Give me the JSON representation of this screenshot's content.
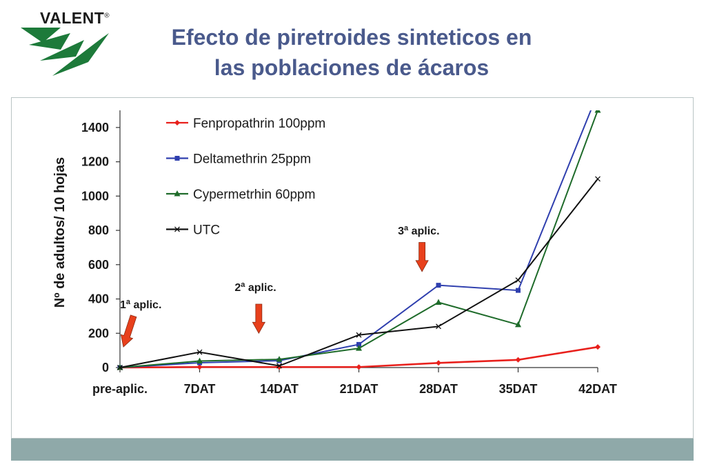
{
  "logo": {
    "text": "VALENT",
    "reg": "®"
  },
  "title": {
    "line1": "Efecto de piretroides sinteticos en",
    "line2": "las poblaciones de ácaros"
  },
  "colors": {
    "title": "#4a5a8c",
    "logo_green": "#1d7a3a",
    "frame_border": "#b9c4c4",
    "footer": "#8fa9a9",
    "arrow": "#e8401c"
  },
  "chart_data": {
    "type": "line",
    "categories": [
      "pre-aplic.",
      "7DAT",
      "14DAT",
      "21DAT",
      "28DAT",
      "35DAT",
      "42DAT"
    ],
    "ylabel": "Nº de adultos/ 10 hojas",
    "ylim": [
      0,
      1500
    ],
    "yticks": [
      0,
      200,
      400,
      600,
      800,
      1000,
      1200,
      1400
    ],
    "grid": false,
    "legend": "top-center",
    "series": [
      {
        "name": "Fenpropathrin 100ppm",
        "color": "#e8201c",
        "marker": "diamond",
        "values": [
          0,
          3,
          3,
          3,
          27,
          45,
          120
        ]
      },
      {
        "name": "Deltamethrin 25ppm",
        "color": "#2f3fae",
        "marker": "square",
        "values": [
          0,
          28,
          40,
          135,
          480,
          450,
          1600
        ]
      },
      {
        "name": "Cypermetrhin 60ppm",
        "color": "#1e6b2a",
        "marker": "triangle",
        "values": [
          0,
          38,
          48,
          112,
          380,
          250,
          1500
        ]
      },
      {
        "name": "UTC",
        "color": "#111111",
        "marker": "x",
        "values": [
          0,
          90,
          10,
          190,
          240,
          510,
          1100
        ]
      }
    ],
    "annotations": [
      {
        "label": "1",
        "sup": "a",
        "suffix": " aplic.",
        "x_index": 0,
        "y": 370,
        "arrow_from": 310,
        "arrow_to": 120
      },
      {
        "label": "2",
        "sup": "a",
        "suffix": " aplic.",
        "x_index": 1.7,
        "y": 470,
        "arrow_from": 370,
        "arrow_to": 200
      },
      {
        "label": "3",
        "sup": "a",
        "suffix": " aplic.",
        "x_index": 3.75,
        "y": 800,
        "arrow_from": 730,
        "arrow_to": 560
      }
    ]
  }
}
